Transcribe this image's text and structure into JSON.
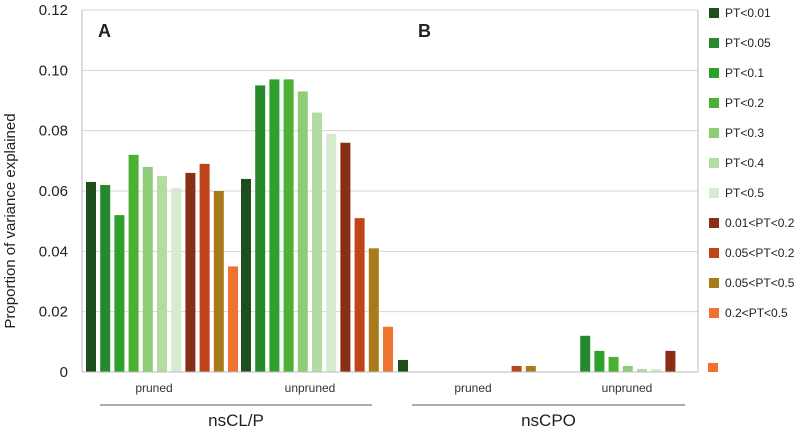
{
  "chart_data": {
    "type": "bar",
    "ylabel": "Proportion of variance explained",
    "ylim": [
      0,
      0.12
    ],
    "yticks": [
      {
        "value": 0,
        "label": "0"
      },
      {
        "value": 0.02,
        "label": "0.02"
      },
      {
        "value": 0.04,
        "label": "0.04"
      },
      {
        "value": 0.06,
        "label": "0.06"
      },
      {
        "value": 0.08,
        "label": "0.08"
      },
      {
        "value": 0.1,
        "label": "0.10"
      },
      {
        "value": 0.12,
        "label": "0.12"
      }
    ],
    "grid": "horizontal",
    "legend_position": "right",
    "panels": [
      {
        "label": "A",
        "group": "nsCL/P"
      },
      {
        "label": "B",
        "group": "nsCPO"
      }
    ],
    "categories": [
      {
        "panel": "A",
        "group": "nsCL/P",
        "name": "pruned"
      },
      {
        "panel": "A",
        "group": "nsCL/P",
        "name": "unpruned"
      },
      {
        "panel": "B",
        "group": "nsCPO",
        "name": "pruned"
      },
      {
        "panel": "B",
        "group": "nsCPO",
        "name": "unpruned"
      }
    ],
    "series": [
      {
        "name": "PT<0.01",
        "color": "#1e4d1e",
        "values": [
          0.063,
          0.064,
          0.004,
          0.0
        ]
      },
      {
        "name": "PT<0.05",
        "color": "#268a2c",
        "values": [
          0.062,
          0.095,
          0.0,
          0.012
        ]
      },
      {
        "name": "PT<0.1",
        "color": "#2ea02e",
        "values": [
          0.052,
          0.097,
          0.0,
          0.007
        ]
      },
      {
        "name": "PT<0.2",
        "color": "#4cb033",
        "values": [
          0.072,
          0.097,
          0.0,
          0.005
        ]
      },
      {
        "name": "PT<0.3",
        "color": "#8fcc78",
        "values": [
          0.068,
          0.093,
          0.0,
          0.002
        ]
      },
      {
        "name": "PT<0.4",
        "color": "#b2dca1",
        "values": [
          0.065,
          0.086,
          0.0,
          0.001
        ]
      },
      {
        "name": "PT<0.5",
        "color": "#d6ecd0",
        "values": [
          0.061,
          0.079,
          0.0,
          0.001
        ]
      },
      {
        "name": "0.01<PT<0.2",
        "color": "#8a2e16",
        "values": [
          0.066,
          0.076,
          0.0,
          0.007
        ]
      },
      {
        "name": "0.05<PT<0.2",
        "color": "#c0441a",
        "values": [
          0.069,
          0.051,
          0.002,
          0.0
        ]
      },
      {
        "name": "0.05<PT<0.5",
        "color": "#a87a1a",
        "values": [
          0.06,
          0.041,
          0.002,
          0.0
        ]
      },
      {
        "name": "0.2<PT<0.5",
        "color": "#ee7330",
        "values": [
          0.035,
          0.015,
          0.0,
          0.003
        ]
      }
    ]
  }
}
